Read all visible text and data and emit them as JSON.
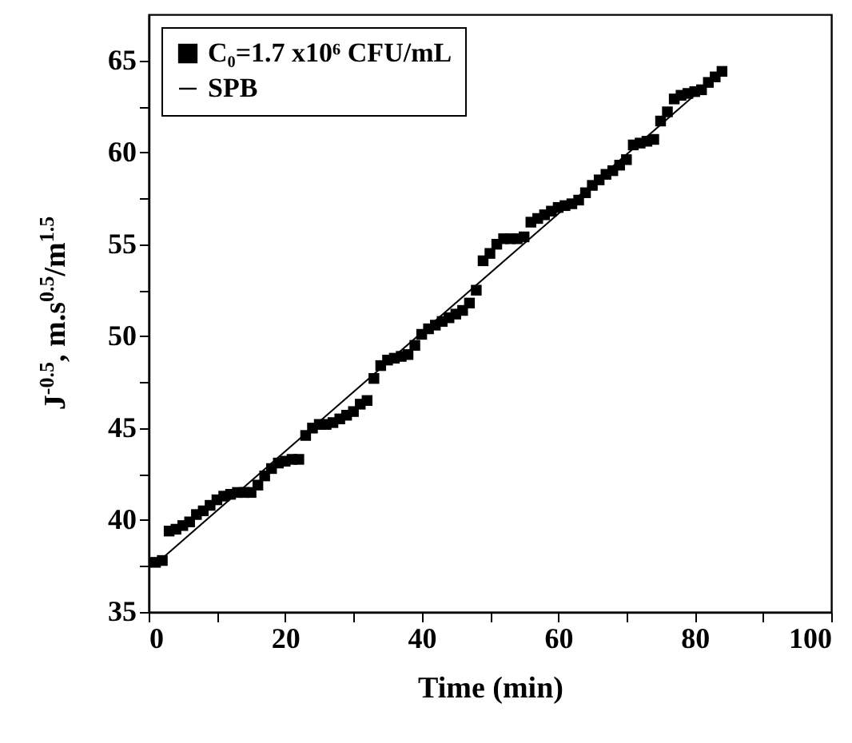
{
  "chart_data": {
    "type": "scatter",
    "xlabel": "Time (min)",
    "ylabel": "J$^{-0.5}$, m.s$^{0.5}$/m$^{1.5}$",
    "xlim": [
      0,
      100
    ],
    "ylim": [
      35,
      67.5
    ],
    "xticks": [
      0,
      {
        "value": 10,
        "label": null
      },
      20,
      {
        "value": 30,
        "label": null
      },
      40,
      {
        "value": 50,
        "label": null
      },
      60,
      {
        "value": 70,
        "label": null
      },
      80,
      {
        "value": 90,
        "label": null
      },
      100
    ],
    "yticks": [
      35,
      {
        "value": 37.5,
        "label": null
      },
      40,
      {
        "value": 42.5,
        "label": null
      },
      45,
      {
        "value": 47.5,
        "label": null
      },
      50,
      {
        "value": 52.5,
        "label": null
      },
      55,
      {
        "value": 57.5,
        "label": null
      },
      60,
      {
        "value": 62.5,
        "label": null
      },
      65
    ],
    "grid": false,
    "legend": "top left",
    "series": [
      {
        "name": "C₀=1.7 x10⁶ CFU/mL",
        "marker": "square",
        "color": "#000000",
        "x": [
          1,
          2,
          3,
          4,
          5,
          6,
          7,
          8,
          9,
          10,
          11,
          12,
          13,
          14,
          15,
          16,
          17,
          18,
          19,
          20,
          21,
          22,
          23,
          24,
          25,
          26,
          27,
          28,
          29,
          30,
          31,
          32,
          33,
          34,
          35,
          36,
          37,
          38,
          39,
          40,
          41,
          42,
          43,
          44,
          45,
          46,
          47,
          48,
          49,
          50,
          51,
          52,
          53,
          54,
          55,
          56,
          57,
          58,
          59,
          60,
          61,
          62,
          63,
          64,
          65,
          66,
          67,
          68,
          69,
          70,
          71,
          72,
          73,
          74,
          75,
          76,
          77,
          78,
          79,
          80,
          81,
          82,
          83,
          84
        ],
        "values": [
          37.7,
          37.8,
          39.4,
          39.5,
          39.7,
          39.9,
          40.3,
          40.5,
          40.8,
          41.1,
          41.3,
          41.4,
          41.5,
          41.5,
          41.5,
          41.9,
          42.4,
          42.8,
          43.1,
          43.2,
          43.3,
          43.3,
          44.6,
          45.0,
          45.2,
          45.2,
          45.3,
          45.5,
          45.7,
          45.9,
          46.3,
          46.5,
          47.7,
          48.4,
          48.7,
          48.8,
          48.9,
          49.0,
          49.5,
          50.1,
          50.4,
          50.6,
          50.8,
          51.0,
          51.2,
          51.4,
          51.8,
          52.5,
          54.1,
          54.5,
          55.0,
          55.3,
          55.3,
          55.3,
          55.4,
          56.2,
          56.4,
          56.6,
          56.8,
          57.0,
          57.1,
          57.2,
          57.4,
          57.8,
          58.2,
          58.5,
          58.8,
          59.0,
          59.3,
          59.6,
          60.4,
          60.5,
          60.6,
          60.7,
          61.7,
          62.2,
          62.9,
          63.1,
          63.2,
          63.3,
          63.4,
          63.8,
          64.1,
          64.4
        ]
      },
      {
        "name": "SPB",
        "type": "line",
        "color": "#000000",
        "marker": "none",
        "line_style": "solid",
        "x": [
          1,
          84
        ],
        "values": [
          37.6,
          64.4
        ]
      }
    ]
  }
}
